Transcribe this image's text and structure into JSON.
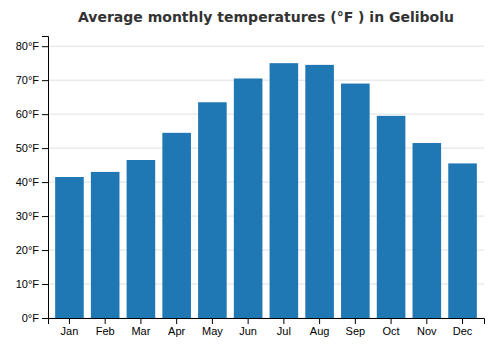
{
  "chart_data": {
    "type": "bar",
    "title": "Average monthly temperatures (°F ) in Gelibolu",
    "categories": [
      "Jan",
      "Feb",
      "Mar",
      "Apr",
      "May",
      "Jun",
      "Jul",
      "Aug",
      "Sep",
      "Oct",
      "Nov",
      "Dec"
    ],
    "values": [
      41.5,
      43.0,
      46.5,
      54.5,
      63.5,
      70.5,
      75.0,
      74.5,
      69.0,
      59.5,
      51.5,
      45.5
    ],
    "ylim": [
      0,
      83
    ],
    "yticks": [
      {
        "value": 0,
        "label": "0°F"
      },
      {
        "value": 10,
        "label": "10°F"
      },
      {
        "value": 20,
        "label": "20°F"
      },
      {
        "value": 30,
        "label": "30°F"
      },
      {
        "value": 40,
        "label": "40°F"
      },
      {
        "value": 50,
        "label": "50°F"
      },
      {
        "value": 60,
        "label": "60°F"
      },
      {
        "value": 70,
        "label": "70°F"
      },
      {
        "value": 80,
        "label": "80°F"
      }
    ],
    "grid": true
  }
}
